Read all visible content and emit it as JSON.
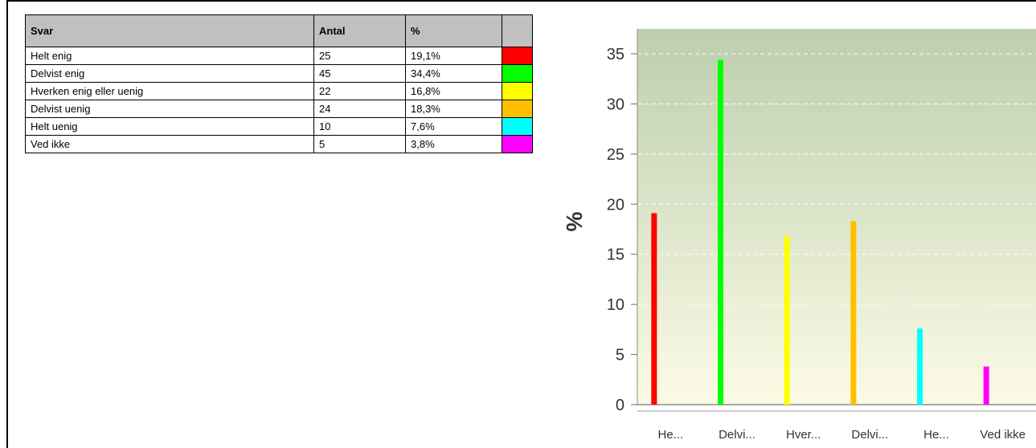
{
  "table": {
    "headers": [
      "Svar",
      "Antal",
      "%",
      ""
    ],
    "rows": [
      {
        "svar": "Helt enig",
        "antal": "25",
        "pct": "19,1%",
        "color": "#ff0000"
      },
      {
        "svar": "Delvist enig",
        "antal": "45",
        "pct": "34,4%",
        "color": "#00ff00"
      },
      {
        "svar": "Hverken enig eller uenig",
        "antal": "22",
        "pct": "16,8%",
        "color": "#ffff00"
      },
      {
        "svar": "Delvist uenig",
        "antal": "24",
        "pct": "18,3%",
        "color": "#ffc000"
      },
      {
        "svar": "Helt uenig",
        "antal": "10",
        "pct": "7,6%",
        "color": "#00ffff"
      },
      {
        "svar": "Ved ikke",
        "antal": "5",
        "pct": "3,8%",
        "color": "#ff00ff"
      }
    ]
  },
  "chart_data": {
    "type": "bar",
    "categories": [
      "He...",
      "Delvi...",
      "Hver...",
      "Delvi...",
      "He...",
      "Ved ikke"
    ],
    "values": [
      19.1,
      34.4,
      16.8,
      18.3,
      7.6,
      3.8
    ],
    "colors": [
      "#ff0000",
      "#00ff00",
      "#ffff00",
      "#ffc000",
      "#00ffff",
      "#ff00ff"
    ],
    "ylabel": "%",
    "ylim": [
      0,
      36
    ],
    "yticks": [
      0,
      5,
      10,
      15,
      20,
      25,
      30,
      35
    ],
    "grid": true,
    "background_gradient": [
      "#bccfae",
      "#fcfbe5"
    ]
  }
}
